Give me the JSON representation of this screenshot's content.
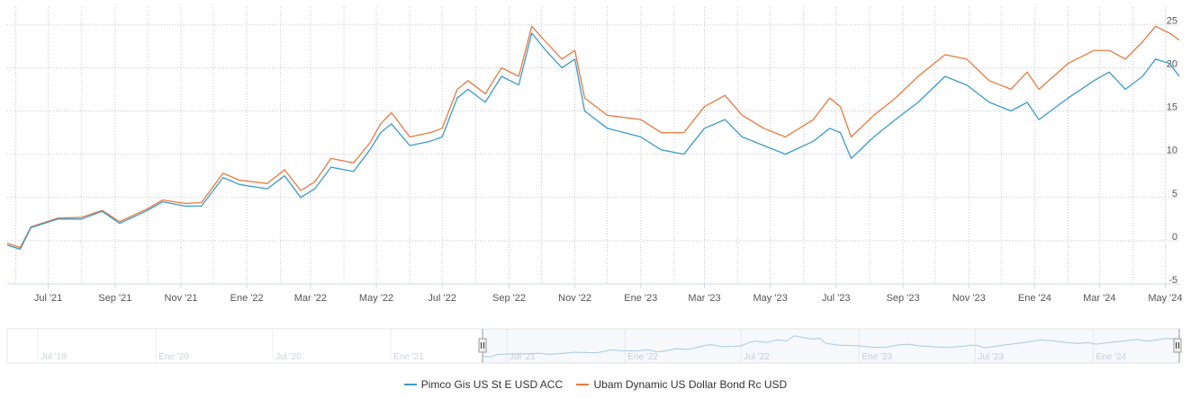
{
  "chart_data": {
    "type": "line",
    "x_start": "2021-05-24",
    "x_end": "2024-05-14",
    "ylim": [
      -5,
      27
    ],
    "y_ticks": [
      "25",
      "20",
      "15",
      "10",
      "5",
      "0",
      "-5"
    ],
    "x_ticks": [
      "Jul '21",
      "Sep '21",
      "Nov '21",
      "Ene '22",
      "Mar '22",
      "May '22",
      "Jul '22",
      "Sep '22",
      "Nov '22",
      "Ene '23",
      "Mar '23",
      "May '23",
      "Jul '23",
      "Sep '23",
      "Nov '23",
      "Ene '24",
      "Mar '24",
      "May '24"
    ],
    "grid": true,
    "legend_position": "bottom",
    "series": [
      {
        "name": "Pimco Gis US St E USD ACC",
        "color": "#3a9bc8",
        "points": [
          [
            "2021-05-24",
            -0.5
          ],
          [
            "2021-06-05",
            -1.0
          ],
          [
            "2021-06-15",
            1.5
          ],
          [
            "2021-07-10",
            2.5
          ],
          [
            "2021-08-01",
            2.5
          ],
          [
            "2021-08-20",
            3.4
          ],
          [
            "2021-09-05",
            2.0
          ],
          [
            "2021-10-01",
            3.5
          ],
          [
            "2021-10-15",
            4.5
          ],
          [
            "2021-11-05",
            4.0
          ],
          [
            "2021-11-20",
            4.0
          ],
          [
            "2021-12-10",
            7.3
          ],
          [
            "2021-12-25",
            6.5
          ],
          [
            "2022-01-20",
            6.0
          ],
          [
            "2022-02-05",
            7.5
          ],
          [
            "2022-02-20",
            5.0
          ],
          [
            "2022-03-05",
            6.0
          ],
          [
            "2022-03-20",
            8.5
          ],
          [
            "2022-04-10",
            8.0
          ],
          [
            "2022-04-25",
            10.5
          ],
          [
            "2022-05-05",
            12.5
          ],
          [
            "2022-05-15",
            13.5
          ],
          [
            "2022-06-01",
            11.0
          ],
          [
            "2022-06-20",
            11.5
          ],
          [
            "2022-07-01",
            12.0
          ],
          [
            "2022-07-15",
            16.5
          ],
          [
            "2022-07-25",
            17.5
          ],
          [
            "2022-08-10",
            16.0
          ],
          [
            "2022-08-25",
            19.0
          ],
          [
            "2022-09-10",
            18.0
          ],
          [
            "2022-09-22",
            24.0
          ],
          [
            "2022-10-05",
            22.0
          ],
          [
            "2022-10-20",
            20.0
          ],
          [
            "2022-11-01",
            21.0
          ],
          [
            "2022-11-10",
            15.0
          ],
          [
            "2022-12-01",
            13.0
          ],
          [
            "2023-01-01",
            12.0
          ],
          [
            "2023-01-20",
            10.5
          ],
          [
            "2023-02-10",
            10.0
          ],
          [
            "2023-03-01",
            13.0
          ],
          [
            "2023-03-20",
            14.0
          ],
          [
            "2023-04-05",
            12.0
          ],
          [
            "2023-04-25",
            11.0
          ],
          [
            "2023-05-15",
            10.0
          ],
          [
            "2023-06-10",
            11.5
          ],
          [
            "2023-06-25",
            13.0
          ],
          [
            "2023-07-05",
            12.5
          ],
          [
            "2023-07-15",
            9.5
          ],
          [
            "2023-08-05",
            12.0
          ],
          [
            "2023-08-25",
            14.0
          ],
          [
            "2023-09-15",
            16.0
          ],
          [
            "2023-10-10",
            19.0
          ],
          [
            "2023-10-30",
            18.0
          ],
          [
            "2023-11-20",
            16.0
          ],
          [
            "2023-12-10",
            15.0
          ],
          [
            "2023-12-25",
            16.0
          ],
          [
            "2024-01-05",
            14.0
          ],
          [
            "2024-02-01",
            16.5
          ],
          [
            "2024-02-25",
            18.5
          ],
          [
            "2024-03-10",
            19.5
          ],
          [
            "2024-03-25",
            17.5
          ],
          [
            "2024-04-10",
            19.0
          ],
          [
            "2024-04-22",
            21.0
          ],
          [
            "2024-05-05",
            20.5
          ],
          [
            "2024-05-14",
            19.0
          ]
        ]
      },
      {
        "name": "Ubam Dynamic US Dollar Bond Rc USD",
        "color": "#e8783e",
        "points": [
          [
            "2021-05-24",
            -0.3
          ],
          [
            "2021-06-05",
            -0.8
          ],
          [
            "2021-06-15",
            1.6
          ],
          [
            "2021-07-10",
            2.6
          ],
          [
            "2021-08-01",
            2.7
          ],
          [
            "2021-08-20",
            3.5
          ],
          [
            "2021-09-05",
            2.2
          ],
          [
            "2021-10-01",
            3.7
          ],
          [
            "2021-10-15",
            4.7
          ],
          [
            "2021-11-05",
            4.3
          ],
          [
            "2021-11-20",
            4.4
          ],
          [
            "2021-12-10",
            7.8
          ],
          [
            "2021-12-25",
            7.0
          ],
          [
            "2022-01-20",
            6.6
          ],
          [
            "2022-02-05",
            8.2
          ],
          [
            "2022-02-20",
            5.8
          ],
          [
            "2022-03-05",
            6.8
          ],
          [
            "2022-03-20",
            9.5
          ],
          [
            "2022-04-10",
            9.0
          ],
          [
            "2022-04-25",
            11.3
          ],
          [
            "2022-05-05",
            13.5
          ],
          [
            "2022-05-15",
            14.8
          ],
          [
            "2022-06-01",
            12.0
          ],
          [
            "2022-06-20",
            12.5
          ],
          [
            "2022-07-01",
            13.0
          ],
          [
            "2022-07-15",
            17.5
          ],
          [
            "2022-07-25",
            18.5
          ],
          [
            "2022-08-10",
            17.0
          ],
          [
            "2022-08-25",
            20.0
          ],
          [
            "2022-09-10",
            19.0
          ],
          [
            "2022-09-22",
            24.8
          ],
          [
            "2022-10-05",
            23.0
          ],
          [
            "2022-10-20",
            21.0
          ],
          [
            "2022-11-01",
            22.0
          ],
          [
            "2022-11-10",
            16.5
          ],
          [
            "2022-12-01",
            14.5
          ],
          [
            "2023-01-01",
            14.0
          ],
          [
            "2023-01-20",
            12.5
          ],
          [
            "2023-02-10",
            12.5
          ],
          [
            "2023-03-01",
            15.5
          ],
          [
            "2023-03-20",
            16.8
          ],
          [
            "2023-04-05",
            14.5
          ],
          [
            "2023-04-25",
            13.0
          ],
          [
            "2023-05-15",
            12.0
          ],
          [
            "2023-06-10",
            14.0
          ],
          [
            "2023-06-25",
            16.5
          ],
          [
            "2023-07-05",
            15.5
          ],
          [
            "2023-07-15",
            12.0
          ],
          [
            "2023-08-05",
            14.5
          ],
          [
            "2023-08-25",
            16.5
          ],
          [
            "2023-09-15",
            19.0
          ],
          [
            "2023-10-10",
            21.5
          ],
          [
            "2023-10-30",
            21.0
          ],
          [
            "2023-11-20",
            18.5
          ],
          [
            "2023-12-10",
            17.5
          ],
          [
            "2023-12-25",
            19.5
          ],
          [
            "2024-01-05",
            17.5
          ],
          [
            "2024-02-01",
            20.5
          ],
          [
            "2024-02-25",
            22.0
          ],
          [
            "2024-03-10",
            22.0
          ],
          [
            "2024-03-25",
            21.0
          ],
          [
            "2024-04-10",
            23.0
          ],
          [
            "2024-04-22",
            24.8
          ],
          [
            "2024-05-05",
            24.0
          ],
          [
            "2024-05-14",
            23.2
          ]
        ]
      }
    ]
  },
  "navigator": {
    "labels": [
      "Jul '19",
      "Ene '20",
      "Jul '20",
      "Ene '21",
      "Jul '21",
      "Ene '22",
      "Jul '22",
      "Ene '23",
      "Jul '23",
      "Ene '24"
    ],
    "handle_left_glyph": "|||",
    "handle_right_glyph": "|||"
  }
}
